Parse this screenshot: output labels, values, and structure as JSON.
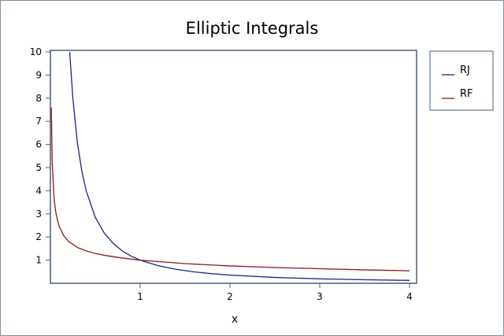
{
  "chart_data": {
    "type": "line",
    "title": "Elliptic Integrals",
    "xlabel": "x",
    "ylabel": "",
    "xlim": [
      0,
      4
    ],
    "ylim": [
      0,
      10
    ],
    "xticks": [
      "1",
      "2",
      "3",
      "4"
    ],
    "yticks": [
      "1",
      "2",
      "3",
      "4",
      "5",
      "6",
      "7",
      "8",
      "9",
      "10"
    ],
    "grid": false,
    "legend_position": "right",
    "series": [
      {
        "name": "RJ",
        "color": "#1f1f8f",
        "x": [
          0.215,
          0.25,
          0.3,
          0.35,
          0.4,
          0.5,
          0.6,
          0.7,
          0.8,
          0.9,
          1.0,
          1.2,
          1.4,
          1.6,
          1.8,
          2.0,
          2.5,
          3.0,
          3.5,
          4.0
        ],
        "y": [
          10.0,
          8.0,
          6.09,
          4.85,
          3.98,
          2.85,
          2.17,
          1.72,
          1.4,
          1.17,
          1.0,
          0.761,
          0.604,
          0.494,
          0.414,
          0.354,
          0.253,
          0.192,
          0.152,
          0.125
        ]
      },
      {
        "name": "RF",
        "color": "#8b1a1a",
        "x": [
          0.01,
          0.02,
          0.04,
          0.06,
          0.08,
          0.1,
          0.15,
          0.2,
          0.3,
          0.4,
          0.5,
          0.6,
          0.8,
          1.0,
          1.5,
          2.0,
          2.5,
          3.0,
          3.5,
          4.0
        ],
        "y": [
          7.6,
          5.24,
          3.71,
          3.07,
          2.7,
          2.44,
          2.05,
          1.82,
          1.55,
          1.4,
          1.29,
          1.21,
          1.09,
          1.0,
          0.85,
          0.75,
          0.68,
          0.63,
          0.58,
          0.54
        ]
      }
    ]
  }
}
